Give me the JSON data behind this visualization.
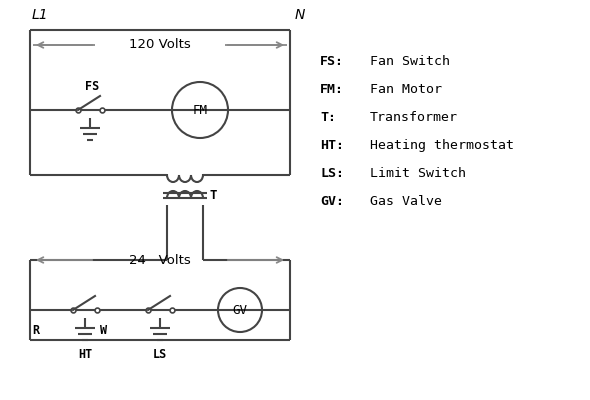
{
  "bg_color": "#ffffff",
  "line_color": "#444444",
  "text_color": "#000000",
  "arrow_color": "#888888",
  "legend_items": [
    [
      "FS:",
      "Fan Switch"
    ],
    [
      "FM:",
      "Fan Motor"
    ],
    [
      "T:",
      "Transformer"
    ],
    [
      "HT:",
      "Heating thermostat"
    ],
    [
      "LS:",
      "Limit Switch"
    ],
    [
      "GV:",
      "Gas Valve"
    ]
  ]
}
